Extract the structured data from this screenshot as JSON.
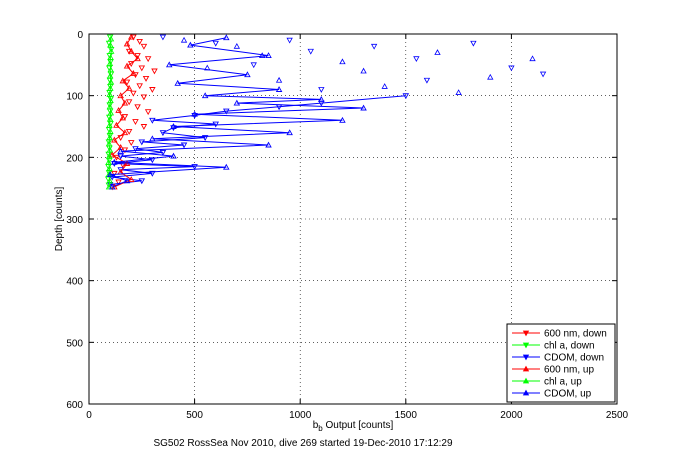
{
  "chart_data": {
    "type": "scatter",
    "xlabel_main": "b",
    "xlabel_sub": "b",
    "xlabel_rest": " Output [counts]",
    "ylabel": "Depth [counts]",
    "caption": "SG502 RossSea Nov 2010, dive 269 started 19-Dec-2010 17:12:29",
    "xlim": [
      0,
      2500
    ],
    "ylim": [
      0,
      600
    ],
    "y_reversed": true,
    "grid": true,
    "legend_position": "bottom-right",
    "xticks": [
      0,
      500,
      1000,
      1500,
      2000,
      2500
    ],
    "yticks": [
      0,
      100,
      200,
      300,
      400,
      500,
      600
    ],
    "series": [
      {
        "name": "600 nm, down",
        "color": "#ff0000",
        "marker": "triangle-down",
        "connected": false,
        "points": [
          [
            210,
            5
          ],
          [
            240,
            12
          ],
          [
            260,
            20
          ],
          [
            190,
            28
          ],
          [
            230,
            35
          ],
          [
            280,
            40
          ],
          [
            200,
            48
          ],
          [
            250,
            55
          ],
          [
            310,
            60
          ],
          [
            220,
            66
          ],
          [
            270,
            72
          ],
          [
            180,
            78
          ],
          [
            240,
            84
          ],
          [
            300,
            90
          ],
          [
            210,
            96
          ],
          [
            260,
            102
          ],
          [
            190,
            110
          ],
          [
            230,
            118
          ],
          [
            280,
            126
          ],
          [
            170,
            134
          ],
          [
            220,
            142
          ],
          [
            260,
            150
          ],
          [
            190,
            158
          ],
          [
            150,
            168
          ],
          [
            200,
            176
          ],
          [
            170,
            188
          ],
          [
            130,
            200
          ],
          [
            160,
            212
          ],
          [
            120,
            226
          ],
          [
            140,
            240
          ],
          [
            110,
            248
          ]
        ]
      },
      {
        "name": "chl a, down",
        "color": "#00ff00",
        "marker": "triangle-down",
        "connected": false,
        "points": [
          [
            100,
            5
          ],
          [
            95,
            15
          ],
          [
            105,
            25
          ],
          [
            98,
            35
          ],
          [
            102,
            45
          ],
          [
            96,
            55
          ],
          [
            104,
            65
          ],
          [
            99,
            75
          ],
          [
            101,
            85
          ],
          [
            97,
            95
          ],
          [
            103,
            105
          ],
          [
            98,
            115
          ],
          [
            100,
            125
          ],
          [
            96,
            135
          ],
          [
            102,
            145
          ],
          [
            95,
            155
          ],
          [
            99,
            165
          ],
          [
            94,
            175
          ],
          [
            97,
            185
          ],
          [
            93,
            195
          ],
          [
            96,
            205
          ],
          [
            92,
            215
          ],
          [
            95,
            225
          ],
          [
            91,
            235
          ],
          [
            94,
            245
          ]
        ]
      },
      {
        "name": "CDOM, down",
        "color": "#0000ff",
        "marker": "triangle-down",
        "connected": true,
        "points": [
          [
            1500,
            100
          ],
          [
            1100,
            112
          ],
          [
            900,
            118
          ],
          [
            650,
            125
          ],
          [
            500,
            132
          ],
          [
            300,
            140
          ],
          [
            600,
            146
          ],
          [
            400,
            152
          ],
          [
            350,
            160
          ],
          [
            550,
            168
          ],
          [
            250,
            175
          ],
          [
            450,
            180
          ],
          [
            220,
            186
          ],
          [
            350,
            192
          ],
          [
            150,
            198
          ],
          [
            300,
            204
          ],
          [
            120,
            210
          ],
          [
            500,
            215
          ],
          [
            150,
            220
          ],
          [
            300,
            226
          ],
          [
            110,
            232
          ],
          [
            250,
            238
          ],
          [
            100,
            244
          ]
        ]
      },
      {
        "name": "600 nm, up",
        "color": "#ff0000",
        "marker": "triangle-up",
        "connected": true,
        "points": [
          [
            120,
            248
          ],
          [
            200,
            236
          ],
          [
            150,
            224
          ],
          [
            180,
            210
          ],
          [
            110,
            196
          ],
          [
            150,
            184
          ],
          [
            120,
            172
          ],
          [
            170,
            160
          ],
          [
            130,
            148
          ],
          [
            160,
            136
          ],
          [
            140,
            124
          ],
          [
            170,
            112
          ],
          [
            150,
            100
          ],
          [
            190,
            88
          ],
          [
            160,
            76
          ],
          [
            210,
            64
          ],
          [
            180,
            52
          ],
          [
            230,
            40
          ],
          [
            200,
            28
          ],
          [
            180,
            16
          ],
          [
            200,
            5
          ]
        ]
      },
      {
        "name": "chl a, up",
        "color": "#00ff00",
        "marker": "triangle-up",
        "connected": true,
        "points": [
          [
            95,
            248
          ],
          [
            98,
            238
          ],
          [
            94,
            228
          ],
          [
            97,
            218
          ],
          [
            93,
            208
          ],
          [
            96,
            198
          ],
          [
            99,
            188
          ],
          [
            95,
            178
          ],
          [
            98,
            168
          ],
          [
            101,
            158
          ],
          [
            97,
            148
          ],
          [
            100,
            138
          ],
          [
            103,
            128
          ],
          [
            99,
            118
          ],
          [
            102,
            108
          ],
          [
            98,
            98
          ],
          [
            101,
            88
          ],
          [
            104,
            78
          ],
          [
            100,
            68
          ],
          [
            103,
            58
          ],
          [
            99,
            48
          ],
          [
            102,
            38
          ],
          [
            105,
            28
          ],
          [
            101,
            18
          ],
          [
            104,
            8
          ]
        ]
      },
      {
        "name": "CDOM, up",
        "color": "#0000ff",
        "marker": "triangle-up",
        "connected": true,
        "points": [
          [
            110,
            248
          ],
          [
            180,
            238
          ],
          [
            100,
            228
          ],
          [
            650,
            216
          ],
          [
            120,
            208
          ],
          [
            400,
            198
          ],
          [
            150,
            190
          ],
          [
            850,
            180
          ],
          [
            300,
            170
          ],
          [
            950,
            160
          ],
          [
            400,
            150
          ],
          [
            1200,
            140
          ],
          [
            500,
            130
          ],
          [
            1300,
            120
          ],
          [
            700,
            112
          ],
          [
            1100,
            106
          ],
          [
            550,
            100
          ],
          [
            900,
            90
          ],
          [
            420,
            80
          ],
          [
            750,
            66
          ],
          [
            380,
            50
          ],
          [
            850,
            35
          ],
          [
            480,
            18
          ],
          [
            650,
            6
          ]
        ]
      }
    ],
    "sparse_series": [
      {
        "color": "#0000ff",
        "marker": "triangle-up",
        "points": [
          [
            450,
            10
          ],
          [
            700,
            20
          ],
          [
            820,
            35
          ],
          [
            560,
            55
          ],
          [
            900,
            75
          ],
          [
            1200,
            45
          ],
          [
            1400,
            85
          ],
          [
            1650,
            30
          ],
          [
            1900,
            70
          ],
          [
            2100,
            40
          ],
          [
            1750,
            95
          ],
          [
            1300,
            60
          ]
        ]
      },
      {
        "color": "#0000ff",
        "marker": "triangle-down",
        "points": [
          [
            350,
            5
          ],
          [
            600,
            15
          ],
          [
            780,
            50
          ],
          [
            1050,
            28
          ],
          [
            1350,
            20
          ],
          [
            1550,
            40
          ],
          [
            1820,
            15
          ],
          [
            2000,
            55
          ],
          [
            2150,
            65
          ],
          [
            1600,
            75
          ],
          [
            1100,
            90
          ],
          [
            950,
            10
          ]
        ]
      }
    ]
  }
}
